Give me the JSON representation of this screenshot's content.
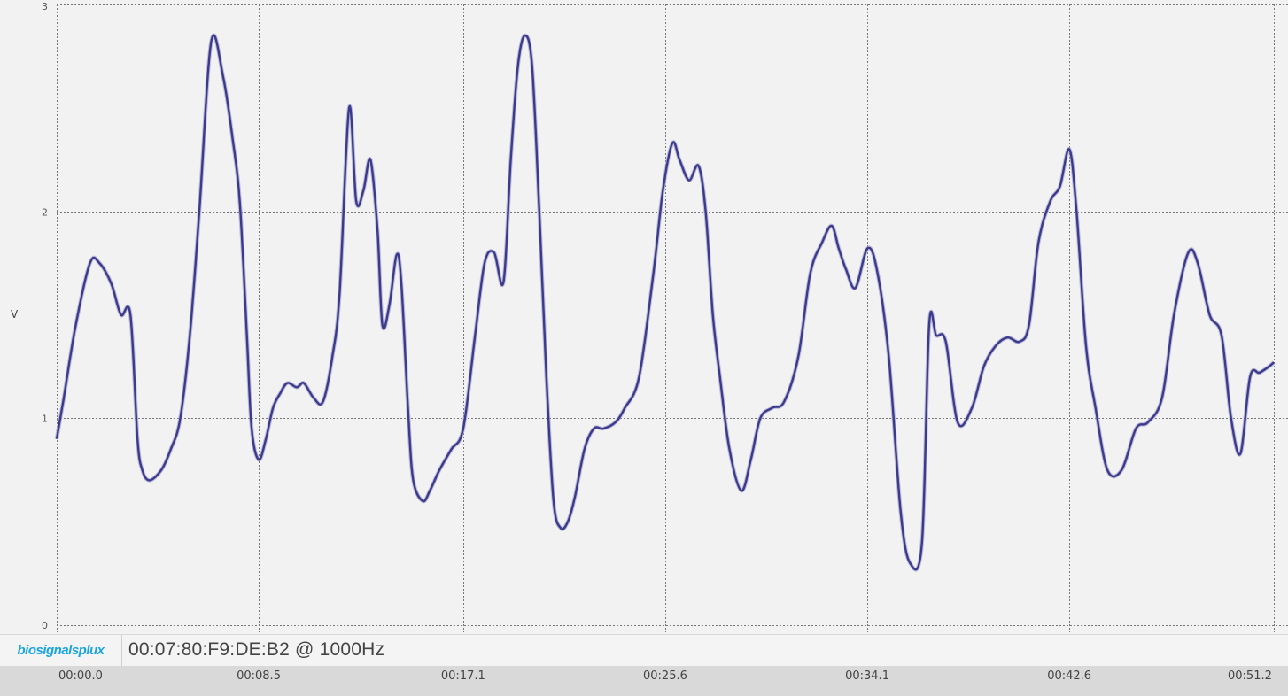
{
  "chart_data": {
    "type": "line",
    "ylabel": "V",
    "ylim": [
      0,
      3
    ],
    "y_ticks": [
      "0",
      "1",
      "2",
      "3"
    ],
    "x_ticks": [
      "00:00.0",
      "00:08.5",
      "00:17.1",
      "00:25.6",
      "00:34.1",
      "00:42.6",
      "00:51.2"
    ],
    "x_tick_values": [
      0,
      8.5,
      17.1,
      25.6,
      34.1,
      42.6,
      51.2
    ],
    "xlim": [
      0,
      51.2
    ],
    "grid": true,
    "series": [
      {
        "color": "#3c3a8c",
        "x": [
          0,
          0.3,
          0.8,
          1.4,
          1.8,
          2.3,
          2.7,
          3.1,
          3.4,
          3.6,
          3.9,
          4.4,
          4.8,
          5.2,
          5.6,
          6.0,
          6.5,
          7.0,
          7.4,
          7.7,
          8.0,
          8.2,
          8.5,
          8.8,
          9.1,
          9.4,
          9.7,
          10.1,
          10.4,
          10.8,
          11.2,
          11.6,
          11.9,
          12.3,
          12.6,
          12.9,
          13.2,
          13.5,
          13.7,
          14.0,
          14.3,
          14.5,
          14.8,
          15.0,
          15.4,
          15.7,
          16.1,
          16.6,
          17.1,
          17.6,
          18.0,
          18.4,
          18.8,
          19.1,
          19.4,
          19.7,
          20.0,
          20.3,
          20.6,
          20.9,
          21.2,
          21.5,
          21.8,
          22.2,
          22.6,
          23.0,
          23.5,
          23.9,
          24.5,
          25.1,
          25.5,
          25.9,
          26.2,
          26.6,
          27.0,
          27.3,
          27.6,
          27.9,
          28.3,
          28.8,
          29.2,
          29.6,
          30.1,
          30.6,
          31.2,
          31.7,
          32.2,
          32.6,
          32.9,
          33.2,
          33.6,
          34.1,
          34.5,
          35.0,
          35.5,
          35.9,
          36.4,
          36.7,
          37.0,
          37.4,
          37.9,
          38.5,
          39.0,
          39.5,
          40.0,
          40.5,
          40.9,
          41.3,
          41.8,
          42.2,
          42.6,
          42.9,
          43.3,
          43.7,
          44.2,
          44.8,
          45.4,
          45.9,
          46.5,
          47.0,
          47.6,
          48.0,
          48.5,
          49.0,
          49.4,
          49.8,
          50.2,
          50.6,
          51.0,
          51.2
        ],
        "y": [
          0.9,
          1.1,
          1.45,
          1.75,
          1.75,
          1.65,
          1.5,
          1.5,
          0.9,
          0.75,
          0.7,
          0.75,
          0.85,
          1.0,
          1.4,
          2.0,
          2.82,
          2.65,
          2.35,
          2.05,
          1.4,
          0.95,
          0.8,
          0.9,
          1.05,
          1.12,
          1.17,
          1.15,
          1.17,
          1.1,
          1.08,
          1.3,
          1.6,
          2.5,
          2.05,
          2.1,
          2.25,
          1.9,
          1.45,
          1.55,
          1.79,
          1.65,
          1.0,
          0.7,
          0.6,
          0.65,
          0.75,
          0.85,
          0.95,
          1.4,
          1.75,
          1.8,
          1.66,
          2.25,
          2.7,
          2.85,
          2.7,
          2.0,
          1.2,
          0.6,
          0.47,
          0.5,
          0.62,
          0.85,
          0.95,
          0.95,
          0.98,
          1.05,
          1.2,
          1.7,
          2.1,
          2.33,
          2.25,
          2.15,
          2.22,
          2.0,
          1.5,
          1.2,
          0.85,
          0.65,
          0.8,
          1.0,
          1.05,
          1.08,
          1.3,
          1.7,
          1.85,
          1.93,
          1.82,
          1.72,
          1.63,
          1.82,
          1.72,
          1.3,
          0.55,
          0.3,
          0.4,
          1.45,
          1.4,
          1.37,
          0.98,
          1.05,
          1.25,
          1.35,
          1.39,
          1.37,
          1.45,
          1.85,
          2.05,
          2.12,
          2.3,
          2.0,
          1.35,
          1.05,
          0.75,
          0.75,
          0.95,
          0.98,
          1.1,
          1.5,
          1.8,
          1.75,
          1.5,
          1.4,
          1.0,
          0.83,
          1.2,
          1.22,
          1.25,
          1.27
        ]
      }
    ]
  },
  "device": {
    "logo_text": "biosignalsplux",
    "label": "00:07:80:F9:DE:B2 @ 1000Hz"
  },
  "colors": {
    "background": "#f2f2f2",
    "grid": "#777777",
    "signal": "#3c3a8c",
    "logo": "#1ba5dc",
    "time_axis_bg": "#d9d9d9"
  }
}
